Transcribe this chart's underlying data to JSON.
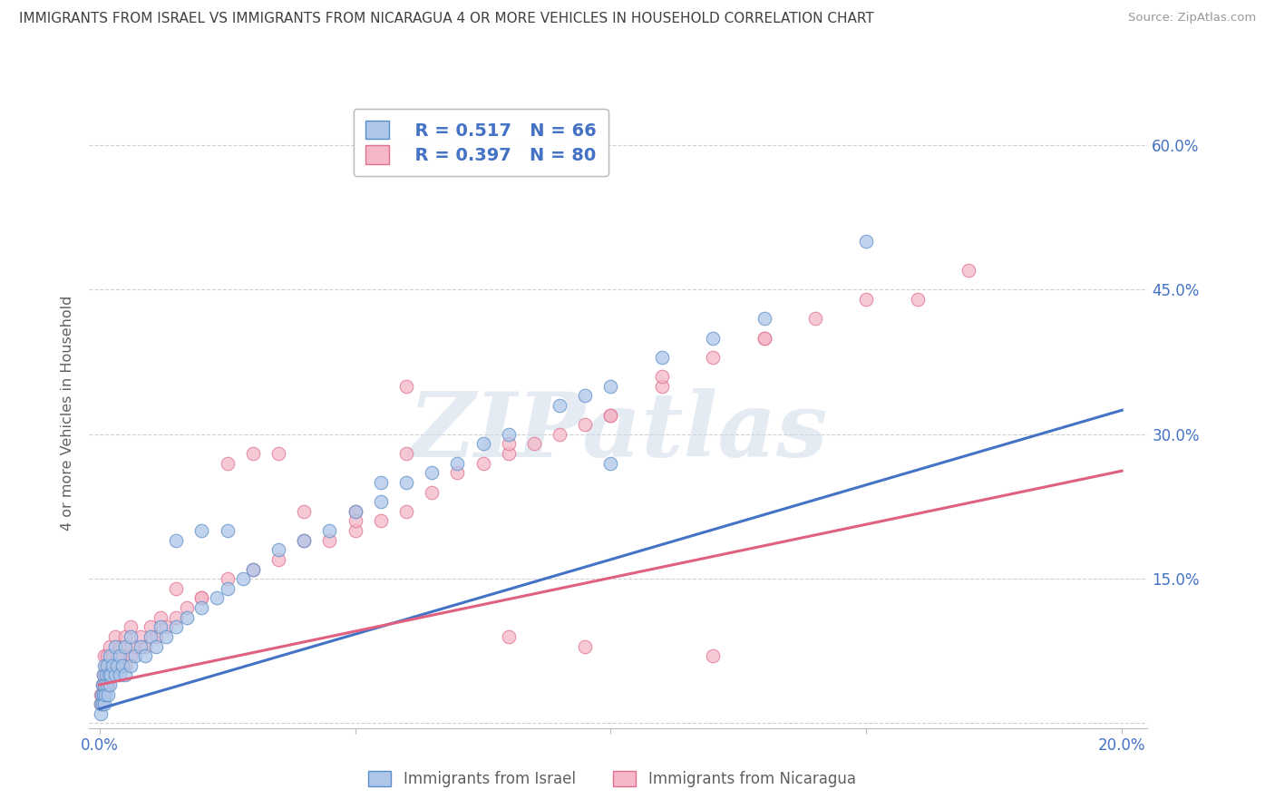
{
  "title": "IMMIGRANTS FROM ISRAEL VS IMMIGRANTS FROM NICARAGUA 4 OR MORE VEHICLES IN HOUSEHOLD CORRELATION CHART",
  "source": "Source: ZipAtlas.com",
  "ylabel": "4 or more Vehicles in Household",
  "xlim": [
    -0.002,
    0.205
  ],
  "ylim": [
    -0.005,
    0.65
  ],
  "x_ticks": [
    0.0,
    0.05,
    0.1,
    0.15,
    0.2
  ],
  "y_ticks": [
    0.0,
    0.15,
    0.3,
    0.45,
    0.6
  ],
  "x_tick_labels": [
    "0.0%",
    "",
    "",
    "",
    "20.0%"
  ],
  "y_tick_labels_right": [
    "",
    "15.0%",
    "30.0%",
    "45.0%",
    "60.0%"
  ],
  "israel_color": "#aec6e8",
  "nicaragua_color": "#f4b8c8",
  "israel_edge_color": "#5b8fc9",
  "nicaragua_edge_color": "#e07090",
  "israel_line_color": "#4472c4",
  "nicaragua_line_color": "#e06080",
  "israel_R": 0.517,
  "israel_N": 66,
  "nicaragua_R": 0.397,
  "nicaragua_N": 80,
  "legend_label_1": "Immigrants from Israel",
  "legend_label_2": "Immigrants from Nicaragua",
  "watermark": "ZIPatlas",
  "background_color": "#ffffff",
  "grid_color": "#d0d0d0",
  "title_color": "#404040",
  "axis_label_color": "#606060",
  "tick_color": "#4472c4",
  "israel_scatter_x": [
    0.0002,
    0.0003,
    0.0004,
    0.0005,
    0.0006,
    0.0007,
    0.0008,
    0.0009,
    0.001,
    0.001,
    0.0012,
    0.0013,
    0.0014,
    0.0015,
    0.0016,
    0.0018,
    0.002,
    0.002,
    0.0022,
    0.0025,
    0.003,
    0.003,
    0.0035,
    0.004,
    0.004,
    0.0045,
    0.005,
    0.005,
    0.006,
    0.006,
    0.007,
    0.008,
    0.009,
    0.01,
    0.011,
    0.012,
    0.013,
    0.015,
    0.017,
    0.02,
    0.023,
    0.025,
    0.028,
    0.03,
    0.035,
    0.04,
    0.045,
    0.05,
    0.055,
    0.06,
    0.065,
    0.07,
    0.075,
    0.08,
    0.09,
    0.095,
    0.1,
    0.11,
    0.12,
    0.13,
    0.015,
    0.02,
    0.025,
    0.055,
    0.1,
    0.15
  ],
  "israel_scatter_y": [
    0.02,
    0.01,
    0.03,
    0.02,
    0.04,
    0.03,
    0.05,
    0.02,
    0.04,
    0.06,
    0.03,
    0.05,
    0.04,
    0.06,
    0.03,
    0.05,
    0.04,
    0.07,
    0.05,
    0.06,
    0.05,
    0.08,
    0.06,
    0.05,
    0.07,
    0.06,
    0.05,
    0.08,
    0.06,
    0.09,
    0.07,
    0.08,
    0.07,
    0.09,
    0.08,
    0.1,
    0.09,
    0.1,
    0.11,
    0.12,
    0.13,
    0.14,
    0.15,
    0.16,
    0.18,
    0.19,
    0.2,
    0.22,
    0.23,
    0.25,
    0.26,
    0.27,
    0.29,
    0.3,
    0.33,
    0.34,
    0.35,
    0.38,
    0.4,
    0.42,
    0.19,
    0.2,
    0.2,
    0.25,
    0.27,
    0.5
  ],
  "nicaragua_scatter_x": [
    0.0002,
    0.0003,
    0.0004,
    0.0005,
    0.0006,
    0.0007,
    0.0008,
    0.0009,
    0.001,
    0.001,
    0.0012,
    0.0013,
    0.0014,
    0.0015,
    0.0016,
    0.0018,
    0.002,
    0.002,
    0.0022,
    0.0025,
    0.003,
    0.003,
    0.0035,
    0.004,
    0.004,
    0.0045,
    0.005,
    0.005,
    0.006,
    0.006,
    0.007,
    0.008,
    0.009,
    0.01,
    0.011,
    0.012,
    0.013,
    0.015,
    0.017,
    0.02,
    0.025,
    0.03,
    0.035,
    0.04,
    0.045,
    0.05,
    0.055,
    0.06,
    0.065,
    0.07,
    0.075,
    0.08,
    0.085,
    0.09,
    0.095,
    0.1,
    0.11,
    0.12,
    0.13,
    0.14,
    0.04,
    0.05,
    0.06,
    0.08,
    0.1,
    0.11,
    0.13,
    0.15,
    0.16,
    0.17,
    0.025,
    0.03,
    0.035,
    0.05,
    0.06,
    0.08,
    0.095,
    0.12,
    0.015,
    0.02
  ],
  "nicaragua_scatter_y": [
    0.02,
    0.03,
    0.02,
    0.04,
    0.03,
    0.05,
    0.04,
    0.03,
    0.05,
    0.07,
    0.04,
    0.06,
    0.05,
    0.07,
    0.04,
    0.06,
    0.05,
    0.08,
    0.06,
    0.07,
    0.06,
    0.09,
    0.07,
    0.06,
    0.08,
    0.07,
    0.06,
    0.09,
    0.07,
    0.1,
    0.08,
    0.09,
    0.08,
    0.1,
    0.09,
    0.11,
    0.1,
    0.11,
    0.12,
    0.13,
    0.15,
    0.16,
    0.17,
    0.19,
    0.19,
    0.2,
    0.21,
    0.22,
    0.24,
    0.26,
    0.27,
    0.28,
    0.29,
    0.3,
    0.31,
    0.32,
    0.35,
    0.38,
    0.4,
    0.42,
    0.22,
    0.22,
    0.28,
    0.29,
    0.32,
    0.36,
    0.4,
    0.44,
    0.44,
    0.47,
    0.27,
    0.28,
    0.28,
    0.21,
    0.35,
    0.09,
    0.08,
    0.07,
    0.14,
    0.13
  ],
  "trend_israel_x0": 0.0,
  "trend_israel_y0": 0.015,
  "trend_israel_x1": 0.2,
  "trend_israel_y1": 0.325,
  "trend_nicaragua_x0": 0.0,
  "trend_nicaragua_y0": 0.04,
  "trend_nicaragua_x1": 0.2,
  "trend_nicaragua_y1": 0.262
}
